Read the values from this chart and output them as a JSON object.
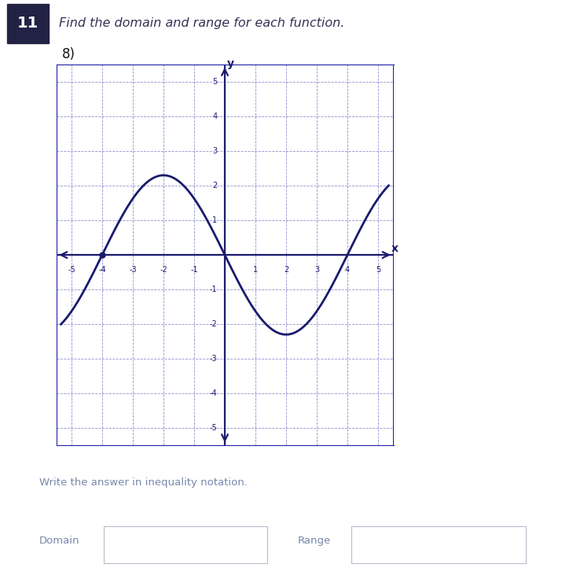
{
  "title_number": "11",
  "title_text": "Find the domain and range for each function.",
  "problem_number": "8)",
  "grid_range": [
    -5,
    5
  ],
  "grid_color": "#2222aa",
  "grid_alpha": 0.5,
  "axis_color": "#1a1a6e",
  "curve_color": "#1a1a6e",
  "curve_linewidth": 2.0,
  "background_color": "#ffffff",
  "write_text": "Write the answer in inequality notation.",
  "domain_label": "Domain",
  "range_label": "Range",
  "label_color": "#7788aa",
  "title_color": "#333355",
  "badge_color": "#222244"
}
